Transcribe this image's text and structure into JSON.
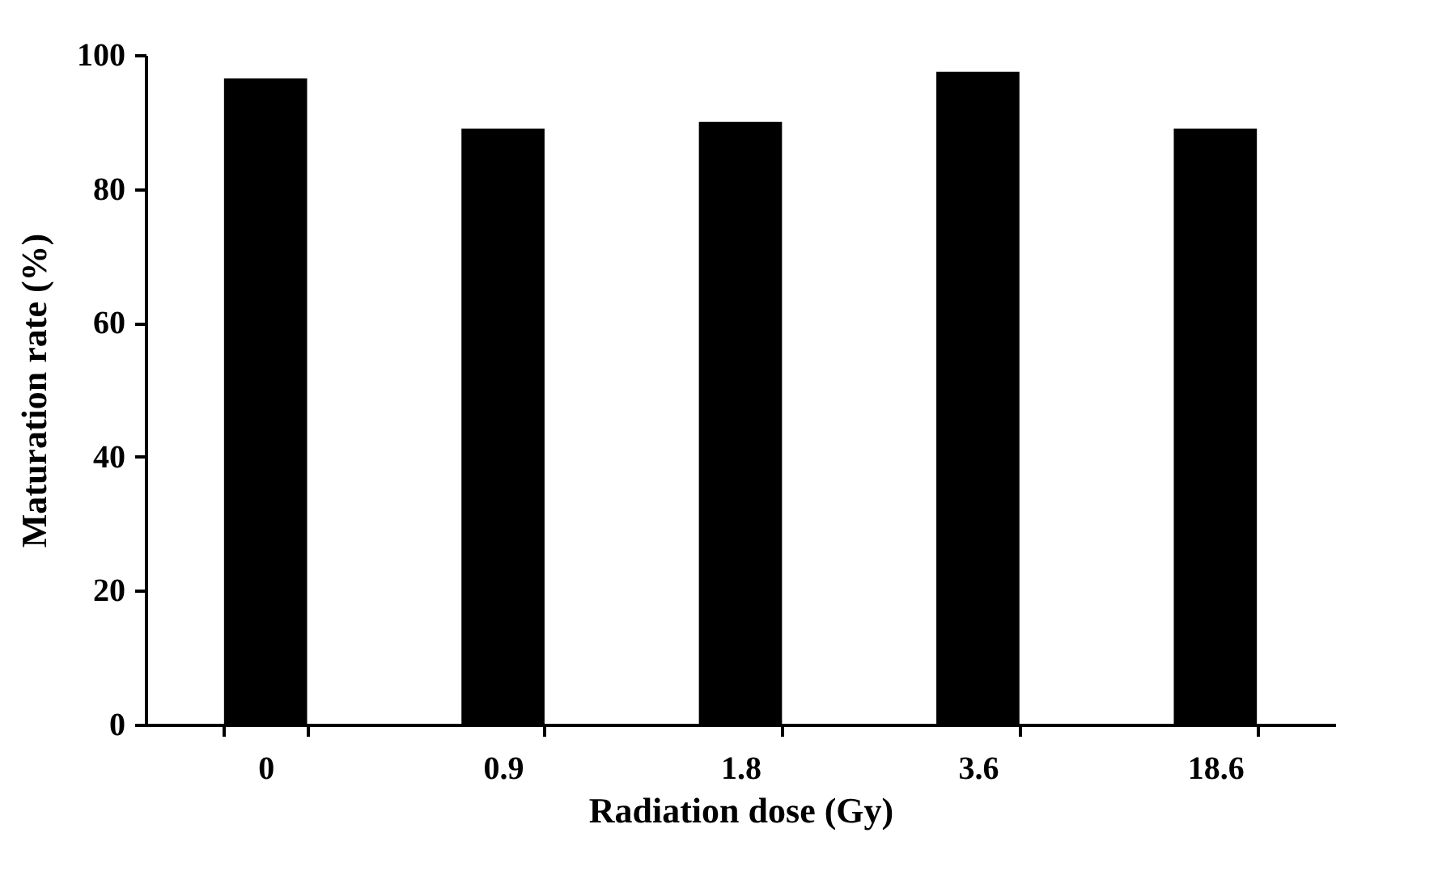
{
  "chart_data": {
    "type": "bar",
    "xlabel": "Radiation dose (Gy)",
    "ylabel": "Maturation rate (%)",
    "categories": [
      "0",
      "0.9",
      "1.8",
      "3.6",
      "18.6"
    ],
    "values": [
      96.5,
      89,
      90,
      97.5,
      89
    ],
    "color": "#000000",
    "ylim": [
      0,
      100
    ],
    "yticks": [
      0,
      20,
      40,
      60,
      80,
      100
    ],
    "grid": false
  }
}
